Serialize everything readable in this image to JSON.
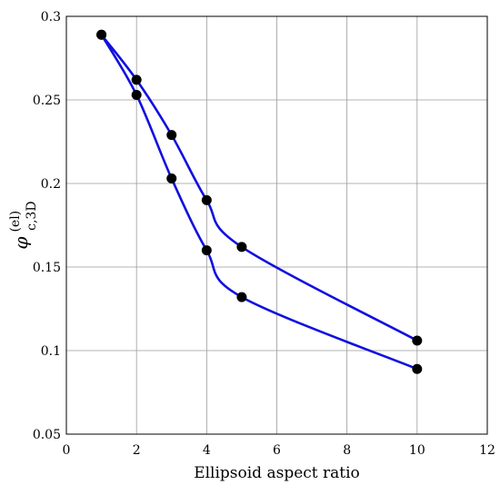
{
  "chart_data": {
    "type": "line",
    "title": "",
    "xlabel": "Ellipsoid aspect ratio",
    "ylabel": {
      "symbol": "φ",
      "superscript": "(el)",
      "subscript": "c,3D"
    },
    "xlim": [
      0,
      12
    ],
    "ylim": [
      0.05,
      0.3
    ],
    "xticks": [
      0,
      2,
      4,
      6,
      8,
      10,
      12
    ],
    "xtick_labels": [
      "0",
      "2",
      "4",
      "6",
      "8",
      "10",
      "12"
    ],
    "yticks": [
      0.05,
      0.1,
      0.15,
      0.2,
      0.25,
      0.3
    ],
    "ytick_labels": [
      "0.05",
      "0.1",
      "0.15",
      "0.2",
      "0.25",
      "0.3"
    ],
    "grid": true,
    "line_color": "#1010e0",
    "marker_color": "#000000",
    "series": [
      {
        "x": [
          1,
          2,
          3,
          4,
          5,
          10
        ],
        "y": [
          0.289,
          0.262,
          0.229,
          0.19,
          0.162,
          0.106
        ]
      },
      {
        "x": [
          1,
          2,
          3,
          4,
          5,
          10
        ],
        "y": [
          0.289,
          0.253,
          0.203,
          0.16,
          0.132,
          0.089
        ]
      }
    ]
  }
}
